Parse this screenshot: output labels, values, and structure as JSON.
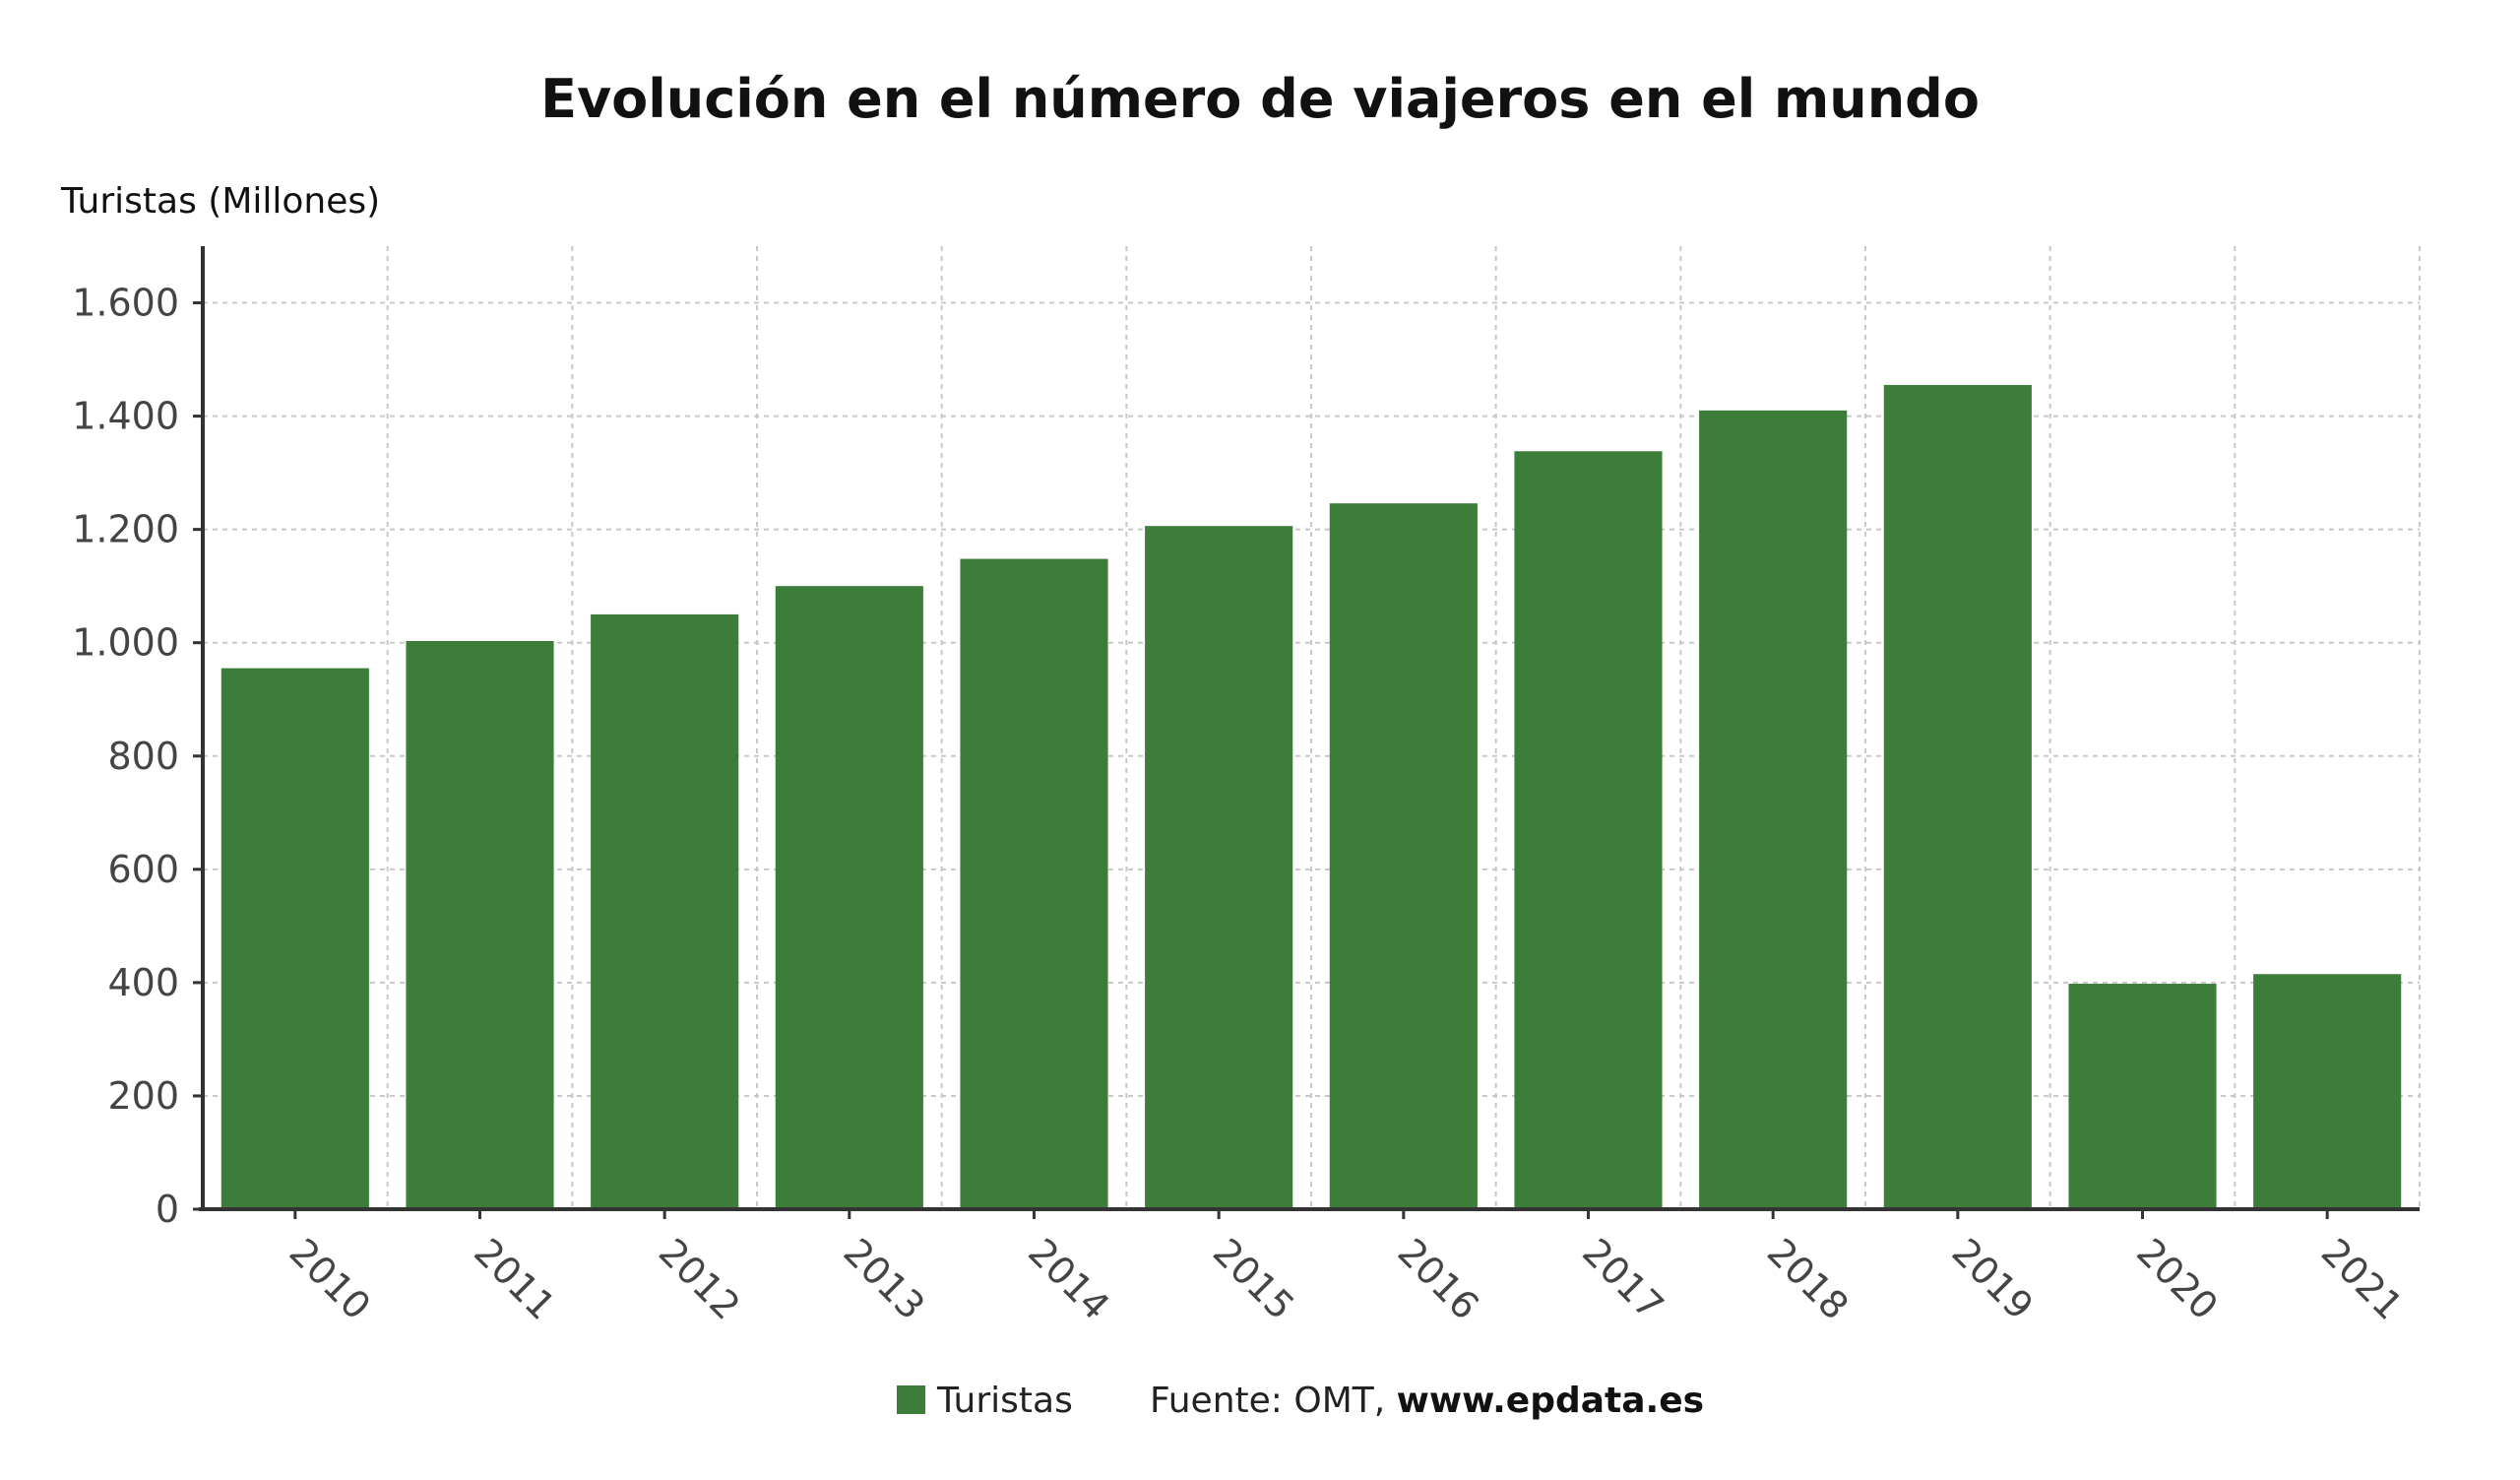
{
  "chart_data": {
    "type": "bar",
    "title": "Evolución en el número de viajeros en el mundo",
    "ylabel": "Turistas (Millones)",
    "xlabel": "",
    "categories": [
      "2010",
      "2011",
      "2012",
      "2013",
      "2014",
      "2015",
      "2016",
      "2017",
      "2018",
      "2019",
      "2020",
      "2021"
    ],
    "series": [
      {
        "name": "Turistas",
        "values": [
          955,
          1003,
          1050,
          1100,
          1148,
          1206,
          1246,
          1338,
          1410,
          1455,
          398,
          415
        ]
      }
    ],
    "ylim": [
      0,
      1700
    ],
    "yticks": [
      0,
      200,
      400,
      600,
      800,
      1000,
      1200,
      1400,
      1600
    ],
    "ytick_labels": [
      "0",
      "200",
      "400",
      "600",
      "800",
      "1.000",
      "1.200",
      "1.400",
      "1.600"
    ],
    "grid": true,
    "legend_position": "bottom-center",
    "colors": {
      "bar": "#3c7e39",
      "grid": "#c8c8c8",
      "axis": "#333333",
      "text": "#111111",
      "tick": "#444444"
    }
  },
  "legend": {
    "label": "Turistas"
  },
  "source": {
    "prefix": "Fuente: OMT, ",
    "site": "www.epdata.es"
  }
}
